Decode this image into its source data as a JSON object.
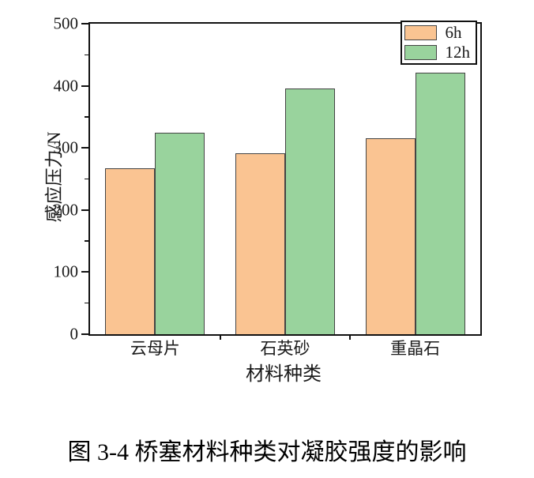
{
  "figure": {
    "caption": "图 3-4  桥塞材料种类对凝胶强度的影响"
  },
  "chart_data": {
    "type": "bar",
    "title": "",
    "categories": [
      "云母片",
      "石英砂",
      "重晶石"
    ],
    "series": [
      {
        "name": "6h",
        "color": "#FAC492",
        "values": [
          267,
          291,
          316
        ]
      },
      {
        "name": "12h",
        "color": "#99D39D",
        "values": [
          325,
          396,
          421
        ]
      }
    ],
    "xlabel": "材料种类",
    "ylabel": "感应压力/N",
    "ylim": [
      0,
      500
    ],
    "yticks": [
      0,
      100,
      200,
      300,
      400,
      500
    ],
    "ytick_minor_step": 50,
    "grid": false,
    "legend_position": "top-right",
    "bar_edge_color": "#444444",
    "axis_color": "#111111"
  }
}
